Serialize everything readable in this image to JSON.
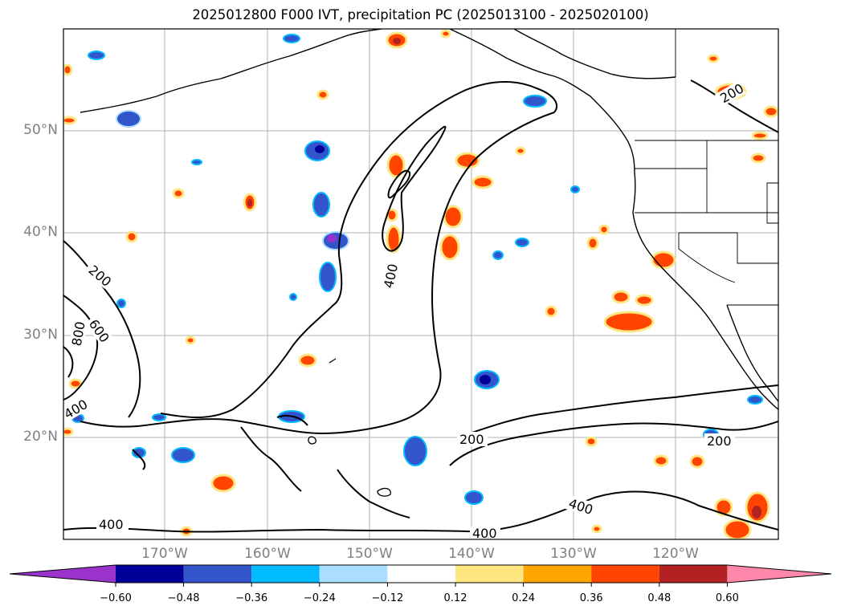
{
  "title": "2025012800 F000 IVT, precipitation PC (2025013100 - 2025020100)",
  "map": {
    "lat_labels": [
      "50°N",
      "40°N",
      "30°N",
      "20°N"
    ],
    "lon_labels": [
      "170°W",
      "160°W",
      "150°W",
      "140°W",
      "130°W",
      "120°W"
    ],
    "contour_labels": [
      "200",
      "200",
      "200",
      "200",
      "400",
      "400",
      "400",
      "400",
      "400",
      "600",
      "800"
    ]
  },
  "colorbar": {
    "ticks": [
      "−0.60",
      "−0.48",
      "−0.36",
      "−0.24",
      "−0.12",
      "0.12",
      "0.24",
      "0.36",
      "0.48",
      "0.60"
    ],
    "colors": [
      "#9933cc",
      "#000099",
      "#3355cc",
      "#00bbff",
      "#aaddff",
      "#ffffff",
      "#ffe680",
      "#ffa500",
      "#ff4500",
      "#b22222",
      "#ff88aa"
    ]
  }
}
